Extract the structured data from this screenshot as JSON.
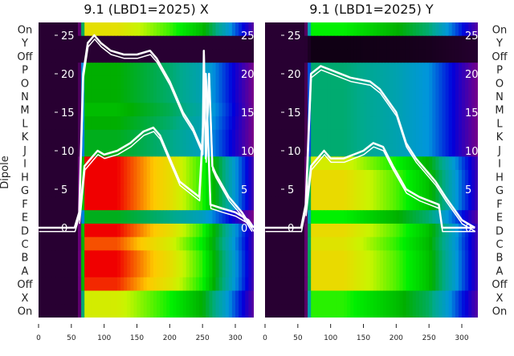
{
  "chart_data": [
    {
      "type": "heatmap",
      "title": "9.1 (LBD1=2025) X",
      "ylabel": "Dipole",
      "xlabel": "",
      "xlim": [
        0,
        330
      ],
      "xticks": [
        "0",
        "50",
        "100",
        "150",
        "200",
        "250",
        "300"
      ],
      "xtick_values": [
        0,
        50,
        100,
        150,
        200,
        250,
        300
      ],
      "row_labels": [
        "On",
        "Y",
        "Off",
        "P",
        "O",
        "N",
        "M",
        "L",
        "K",
        "J",
        "I",
        "H",
        "G",
        "F",
        "E",
        "D",
        "C",
        "B",
        "A",
        "Off",
        "X",
        "On"
      ],
      "row_peak": [
        0.75,
        0.05,
        0.05,
        0.5,
        0.5,
        0.5,
        0.52,
        0.5,
        0.48,
        0.48,
        0.9,
        0.9,
        0.9,
        0.9,
        0.48,
        0.9,
        0.86,
        0.9,
        0.9,
        0.88,
        0.72,
        0.72
      ],
      "inner_ylim": [
        0,
        26
      ],
      "inner_yticks": [
        "0",
        "5",
        "10",
        "15",
        "20",
        "25"
      ],
      "inner_ytick_values": [
        0,
        5,
        10,
        15,
        20,
        25
      ],
      "series": [
        {
          "name": "upper",
          "points": [
            [
              0,
              0
            ],
            [
              55,
              0
            ],
            [
              62,
              2
            ],
            [
              68,
              20
            ],
            [
              75,
              24
            ],
            [
              85,
              25
            ],
            [
              95,
              24
            ],
            [
              110,
              23
            ],
            [
              130,
              22.5
            ],
            [
              150,
              22.5
            ],
            [
              170,
              23
            ],
            [
              180,
              22
            ],
            [
              200,
              19
            ],
            [
              220,
              15
            ],
            [
              235,
              13
            ],
            [
              245,
              11
            ],
            [
              250,
              10
            ],
            [
              252,
              23
            ],
            [
              255,
              9
            ],
            [
              260,
              20
            ],
            [
              265,
              8
            ],
            [
              270,
              7
            ],
            [
              290,
              4
            ],
            [
              310,
              2
            ],
            [
              325,
              0
            ]
          ]
        },
        {
          "name": "lower",
          "points": [
            [
              62,
              1
            ],
            [
              70,
              8
            ],
            [
              80,
              9
            ],
            [
              90,
              10
            ],
            [
              100,
              9.5
            ],
            [
              120,
              10
            ],
            [
              140,
              11
            ],
            [
              160,
              12.5
            ],
            [
              175,
              13
            ],
            [
              185,
              12
            ],
            [
              200,
              9
            ],
            [
              215,
              6
            ],
            [
              230,
              5
            ],
            [
              245,
              4
            ],
            [
              255,
              20
            ],
            [
              262,
              3
            ],
            [
              280,
              2.5
            ],
            [
              300,
              2
            ],
            [
              320,
              1
            ],
            [
              328,
              0
            ]
          ]
        }
      ]
    },
    {
      "type": "heatmap",
      "title": "9.1 (LBD1=2025) Y",
      "xlabel": "",
      "xlim": [
        0,
        330
      ],
      "xticks": [
        "0",
        "50",
        "100",
        "150",
        "200",
        "250",
        "300"
      ],
      "xtick_values": [
        0,
        50,
        100,
        150,
        200,
        250,
        300
      ],
      "row_labels": [
        "On",
        "Y",
        "Off",
        "P",
        "O",
        "N",
        "M",
        "L",
        "K",
        "J",
        "I",
        "H",
        "G",
        "F",
        "E",
        "D",
        "C",
        "B",
        "A",
        "Off",
        "X",
        "On"
      ],
      "row_peak": [
        0.6,
        0.02,
        0.02,
        0.42,
        0.42,
        0.42,
        0.42,
        0.42,
        0.42,
        0.42,
        0.72,
        0.76,
        0.76,
        0.76,
        0.6,
        0.76,
        0.74,
        0.76,
        0.76,
        0.76,
        0.62,
        0.62
      ],
      "inner_ylim": [
        0,
        26
      ],
      "inner_yticks": [
        "0",
        "5",
        "10",
        "15",
        "20",
        "25"
      ],
      "inner_ytick_values": [
        0,
        5,
        10,
        15,
        20,
        25
      ],
      "series": [
        {
          "name": "upper",
          "points": [
            [
              0,
              0
            ],
            [
              55,
              0
            ],
            [
              62,
              3
            ],
            [
              70,
              20
            ],
            [
              85,
              21
            ],
            [
              100,
              20.5
            ],
            [
              130,
              19.5
            ],
            [
              160,
              19
            ],
            [
              175,
              18
            ],
            [
              200,
              15
            ],
            [
              215,
              11
            ],
            [
              230,
              9
            ],
            [
              250,
              7
            ],
            [
              260,
              6
            ],
            [
              275,
              4
            ],
            [
              300,
              1
            ],
            [
              320,
              0
            ]
          ]
        },
        {
          "name": "lower",
          "points": [
            [
              62,
              2
            ],
            [
              70,
              8
            ],
            [
              90,
              10
            ],
            [
              100,
              9
            ],
            [
              120,
              9
            ],
            [
              150,
              10
            ],
            [
              165,
              11
            ],
            [
              180,
              10.5
            ],
            [
              195,
              8
            ],
            [
              215,
              5
            ],
            [
              235,
              4
            ],
            [
              250,
              3.5
            ],
            [
              265,
              3
            ],
            [
              270,
              0
            ],
            [
              300,
              0
            ],
            [
              320,
              0
            ]
          ]
        }
      ]
    }
  ]
}
